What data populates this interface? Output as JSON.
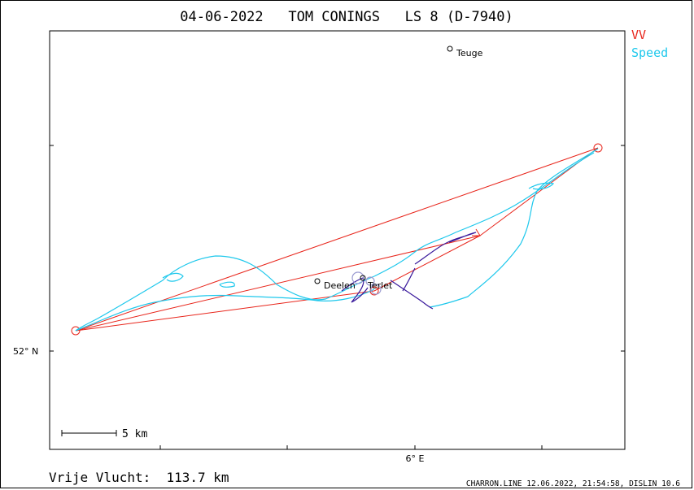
{
  "title": "04-06-2022   TOM CONINGS   LS 8 (D-7940)",
  "legend": [
    {
      "label": "VV",
      "color": "#e8251b"
    },
    {
      "label": "Speed",
      "color": "#1ec8ec"
    }
  ],
  "axis": {
    "lat_tick": "52° N",
    "lon_tick": "6° E"
  },
  "scale_bar": "5 km",
  "places": [
    {
      "name": "Teuge"
    },
    {
      "name": "Deelen"
    },
    {
      "name": "Terlet"
    }
  ],
  "footer": {
    "distance": "Vrije Vlucht:  113.7 km",
    "credit": "CHARRON.LINE 12.06.2022, 21:54:58, DISLIN 10.6"
  },
  "colors": {
    "task": "#e8251b",
    "track_fast": "#1ec8ec",
    "track_slow": "#3a1a9c",
    "frame": "#000000"
  }
}
